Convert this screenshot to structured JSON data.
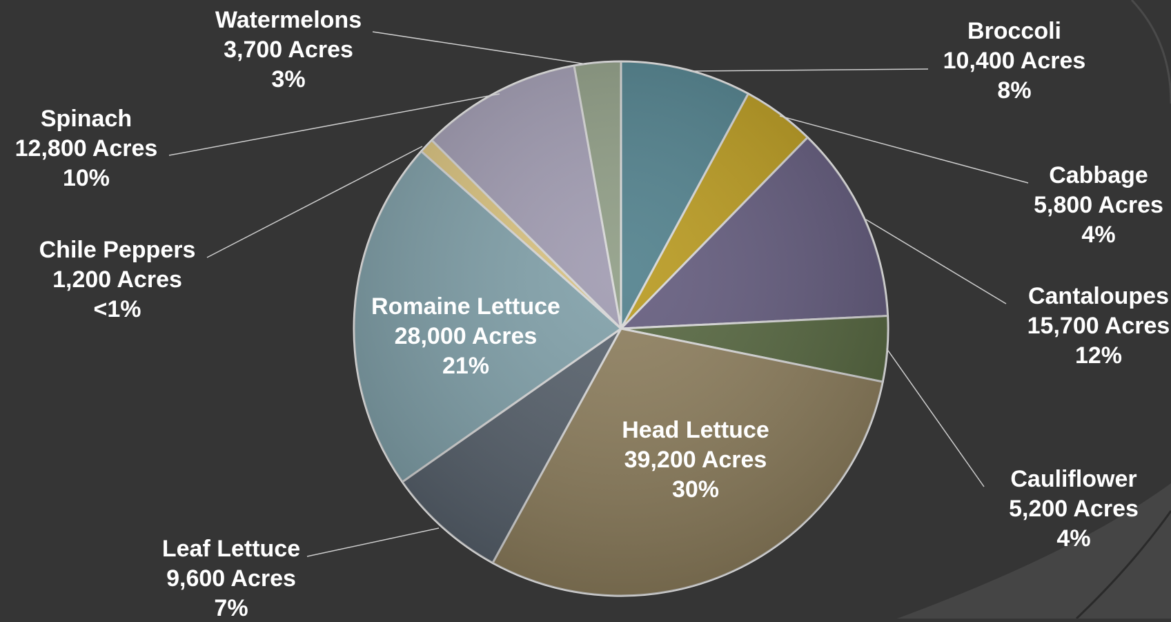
{
  "chart_data": {
    "type": "pie",
    "title": "",
    "unit": "Acres",
    "slices": [
      {
        "name": "Broccoli",
        "value": 10400,
        "acres_label": "10,400 Acres",
        "percent_label": "8%",
        "color": "#4f7f8b"
      },
      {
        "name": "Cabbage",
        "value": 5800,
        "acres_label": "5,800 Acres",
        "percent_label": "4%",
        "color": "#b8991e"
      },
      {
        "name": "Cantaloupes",
        "value": 15700,
        "acres_label": "15,700 Acres",
        "percent_label": "12%",
        "color": "#625a7c"
      },
      {
        "name": "Cauliflower",
        "value": 5200,
        "acres_label": "5,200 Acres",
        "percent_label": "4%",
        "color": "#55663f"
      },
      {
        "name": "Head Lettuce",
        "value": 39200,
        "acres_label": "39,200 Acres",
        "percent_label": "30%",
        "color": "#8c7d5c"
      },
      {
        "name": "Leaf Lettuce",
        "value": 9600,
        "acres_label": "9,600 Acres",
        "percent_label": "7%",
        "color": "#56606b"
      },
      {
        "name": "Romaine Lettuce",
        "value": 28000,
        "acres_label": "28,000 Acres",
        "percent_label": "21%",
        "color": "#7f9fa8"
      },
      {
        "name": "Chile Peppers",
        "value": 1200,
        "acres_label": "1,200 Acres",
        "percent_label": "<1%",
        "color": "#d9c27e"
      },
      {
        "name": "Spinach",
        "value": 12800,
        "acres_label": "12,800 Acres",
        "percent_label": "10%",
        "color": "#9f9ab0"
      },
      {
        "name": "Watermelons",
        "value": 3700,
        "acres_label": "3,700 Acres",
        "percent_label": "3%",
        "color": "#8e9c84"
      }
    ],
    "legend": "none"
  }
}
